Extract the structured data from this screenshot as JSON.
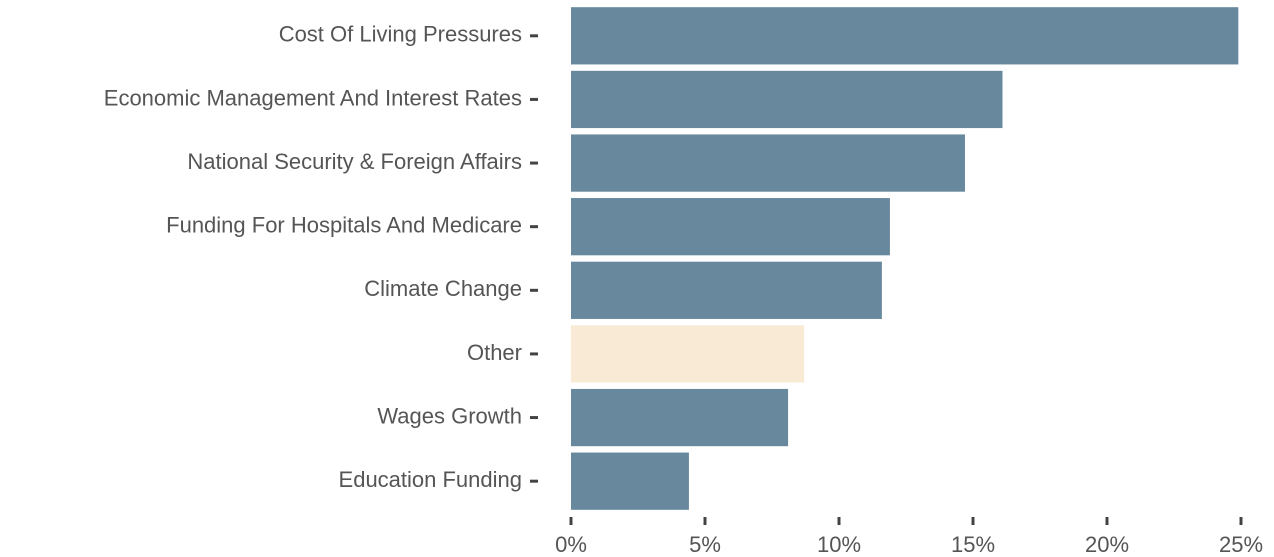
{
  "chart_data": {
    "type": "hbar",
    "categories": [
      "Cost Of Living Pressures",
      "Economic Management And Interest Rates",
      "National Security & Foreign Affairs",
      "Funding For Hospitals And Medicare",
      "Climate Change",
      "Other",
      "Wages Growth",
      "Education Funding"
    ],
    "values": [
      24.9,
      16.1,
      14.7,
      11.9,
      11.6,
      8.7,
      8.1,
      4.4
    ],
    "colors": [
      "#68889d",
      "#68889d",
      "#68889d",
      "#68889d",
      "#68889d",
      "#f8ead4",
      "#68889d",
      "#68889d"
    ],
    "xlim": [
      0,
      25
    ],
    "xticks": [
      {
        "value": 0,
        "label": "0%"
      },
      {
        "value": 5,
        "label": "5%"
      },
      {
        "value": 10,
        "label": "10%"
      },
      {
        "value": 15,
        "label": "15%"
      },
      {
        "value": 20,
        "label": "20%"
      },
      {
        "value": 25,
        "label": "25%"
      }
    ],
    "grid": false
  }
}
